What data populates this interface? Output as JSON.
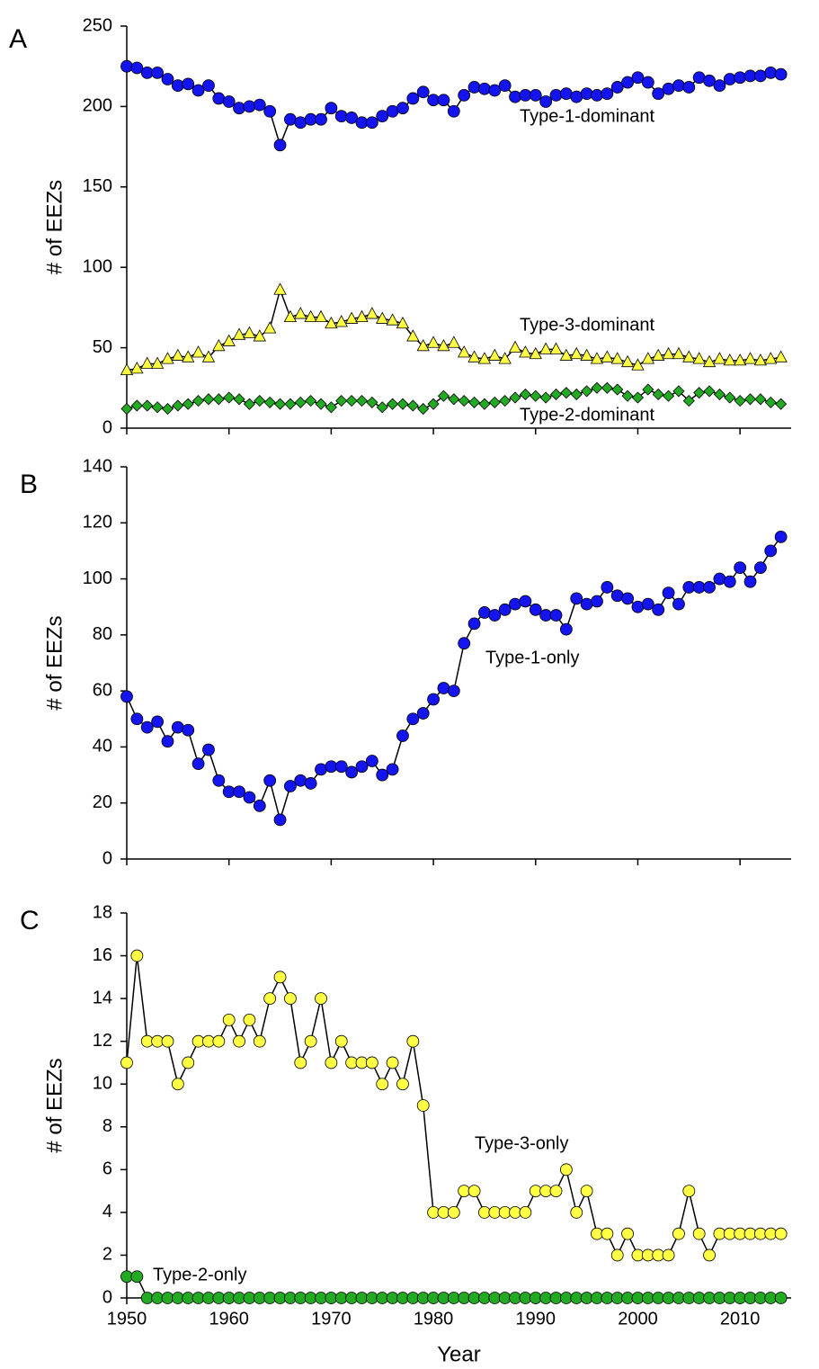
{
  "chart_data": [
    {
      "type": "line",
      "panel_label": "A",
      "ylabel": "# of EEZs",
      "xlim": [
        1950,
        2015
      ],
      "ylim": [
        0,
        250
      ],
      "yticks": [
        0,
        50,
        100,
        150,
        200,
        250
      ],
      "xticks": [
        1950,
        1960,
        1970,
        1980,
        1990,
        2000,
        2010
      ],
      "show_xtick_labels": false,
      "x": [
        1950,
        1951,
        1952,
        1953,
        1954,
        1955,
        1956,
        1957,
        1958,
        1959,
        1960,
        1961,
        1962,
        1963,
        1964,
        1965,
        1966,
        1967,
        1968,
        1969,
        1970,
        1971,
        1972,
        1973,
        1974,
        1975,
        1976,
        1977,
        1978,
        1979,
        1980,
        1981,
        1982,
        1983,
        1984,
        1985,
        1986,
        1987,
        1988,
        1989,
        1990,
        1991,
        1992,
        1993,
        1994,
        1995,
        1996,
        1997,
        1998,
        1999,
        2000,
        2001,
        2002,
        2003,
        2004,
        2005,
        2006,
        2007,
        2008,
        2009,
        2010,
        2011,
        2012,
        2013,
        2014
      ],
      "series": [
        {
          "name": "Type-1-dominant",
          "color": "#1414f0",
          "marker": "circle",
          "values": [
            225,
            224,
            221,
            221,
            217,
            213,
            214,
            210,
            213,
            205,
            203,
            199,
            200,
            201,
            197,
            176,
            192,
            190,
            192,
            192,
            199,
            194,
            193,
            190,
            190,
            194,
            197,
            199,
            205,
            209,
            204,
            204,
            197,
            207,
            212,
            211,
            210,
            213,
            206,
            207,
            207,
            203,
            207,
            208,
            206,
            208,
            207,
            208,
            212,
            215,
            218,
            215,
            208,
            211,
            213,
            212,
            218,
            216,
            213,
            217,
            218,
            219,
            219,
            221,
            220
          ]
        },
        {
          "name": "Type-3-dominant",
          "color": "#ffff44",
          "marker": "triangle",
          "values": [
            36,
            37,
            40,
            40,
            43,
            45,
            44,
            47,
            44,
            51,
            54,
            58,
            59,
            57,
            62,
            86,
            69,
            71,
            69,
            69,
            65,
            66,
            68,
            69,
            71,
            68,
            67,
            65,
            57,
            51,
            53,
            51,
            53,
            47,
            44,
            43,
            45,
            43,
            50,
            47,
            46,
            49,
            49,
            45,
            46,
            45,
            43,
            44,
            43,
            41,
            39,
            43,
            45,
            46,
            46,
            44,
            43,
            41,
            43,
            42,
            42,
            43,
            42,
            43,
            44
          ]
        },
        {
          "name": "Type-2-dominant",
          "color": "#22aa22",
          "marker": "diamond",
          "values": [
            12,
            14,
            14,
            13,
            12,
            14,
            15,
            17,
            18,
            18,
            19,
            18,
            15,
            17,
            16,
            15,
            15,
            16,
            17,
            15,
            13,
            17,
            17,
            17,
            16,
            13,
            15,
            15,
            14,
            12,
            15,
            20,
            18,
            17,
            16,
            15,
            16,
            17,
            19,
            21,
            20,
            19,
            21,
            22,
            21,
            23,
            25,
            25,
            24,
            20,
            19,
            24,
            21,
            20,
            23,
            17,
            22,
            23,
            21,
            19,
            17,
            18,
            18,
            16,
            15
          ]
        }
      ]
    },
    {
      "type": "line",
      "panel_label": "B",
      "ylabel": "# of EEZs",
      "xlim": [
        1950,
        2015
      ],
      "ylim": [
        0,
        140
      ],
      "yticks": [
        0,
        20,
        40,
        60,
        80,
        100,
        120,
        140
      ],
      "xticks": [
        1950,
        1960,
        1970,
        1980,
        1990,
        2000,
        2010
      ],
      "show_xtick_labels": false,
      "x": [
        1950,
        1951,
        1952,
        1953,
        1954,
        1955,
        1956,
        1957,
        1958,
        1959,
        1960,
        1961,
        1962,
        1963,
        1964,
        1965,
        1966,
        1967,
        1968,
        1969,
        1970,
        1971,
        1972,
        1973,
        1974,
        1975,
        1976,
        1977,
        1978,
        1979,
        1980,
        1981,
        1982,
        1983,
        1984,
        1985,
        1986,
        1987,
        1988,
        1989,
        1990,
        1991,
        1992,
        1993,
        1994,
        1995,
        1996,
        1997,
        1998,
        1999,
        2000,
        2001,
        2002,
        2003,
        2004,
        2005,
        2006,
        2007,
        2008,
        2009,
        2010,
        2011,
        2012,
        2013,
        2014
      ],
      "series": [
        {
          "name": "Type-1-only",
          "color": "#1414f0",
          "marker": "circle",
          "values": [
            58,
            50,
            47,
            49,
            42,
            47,
            46,
            34,
            39,
            28,
            24,
            24,
            22,
            19,
            28,
            14,
            26,
            28,
            27,
            32,
            33,
            33,
            31,
            33,
            35,
            30,
            32,
            44,
            50,
            52,
            57,
            61,
            60,
            77,
            84,
            88,
            87,
            89,
            91,
            92,
            89,
            87,
            87,
            82,
            93,
            91,
            92,
            97,
            94,
            93,
            90,
            91,
            89,
            95,
            91,
            97,
            97,
            97,
            100,
            99,
            104,
            99,
            104,
            110,
            115
          ]
        }
      ]
    },
    {
      "type": "line",
      "panel_label": "C",
      "ylabel": "# of EEZs",
      "xlabel": "Year",
      "xlim": [
        1950,
        2015
      ],
      "ylim": [
        0,
        18
      ],
      "yticks": [
        0,
        2,
        4,
        6,
        8,
        10,
        12,
        14,
        16,
        18
      ],
      "xticks": [
        1950,
        1960,
        1970,
        1980,
        1990,
        2000,
        2010
      ],
      "show_xtick_labels": true,
      "x": [
        1950,
        1951,
        1952,
        1953,
        1954,
        1955,
        1956,
        1957,
        1958,
        1959,
        1960,
        1961,
        1962,
        1963,
        1964,
        1965,
        1966,
        1967,
        1968,
        1969,
        1970,
        1971,
        1972,
        1973,
        1974,
        1975,
        1976,
        1977,
        1978,
        1979,
        1980,
        1981,
        1982,
        1983,
        1984,
        1985,
        1986,
        1987,
        1988,
        1989,
        1990,
        1991,
        1992,
        1993,
        1994,
        1995,
        1996,
        1997,
        1998,
        1999,
        2000,
        2001,
        2002,
        2003,
        2004,
        2005,
        2006,
        2007,
        2008,
        2009,
        2010,
        2011,
        2012,
        2013,
        2014
      ],
      "series": [
        {
          "name": "Type-3-only",
          "color": "#ffff44",
          "marker": "circle",
          "values": [
            11,
            16,
            12,
            12,
            12,
            10,
            11,
            12,
            12,
            12,
            13,
            12,
            13,
            12,
            14,
            15,
            14,
            11,
            12,
            14,
            11,
            12,
            11,
            11,
            11,
            10,
            11,
            10,
            12,
            9,
            4,
            4,
            4,
            5,
            5,
            4,
            4,
            4,
            4,
            4,
            5,
            5,
            5,
            6,
            4,
            5,
            3,
            3,
            2,
            3,
            2,
            2,
            2,
            2,
            3,
            5,
            3,
            2,
            3,
            3,
            3,
            3,
            3,
            3,
            3
          ]
        },
        {
          "name": "Type-2-only",
          "color": "#22aa22",
          "marker": "circle",
          "values": [
            1,
            1,
            0,
            0,
            0,
            0,
            0,
            0,
            0,
            0,
            0,
            0,
            0,
            0,
            0,
            0,
            0,
            0,
            0,
            0,
            0,
            0,
            0,
            0,
            0,
            0,
            0,
            0,
            0,
            0,
            0,
            0,
            0,
            0,
            0,
            0,
            0,
            0,
            0,
            0,
            0,
            0,
            0,
            0,
            0,
            0,
            0,
            0,
            0,
            0,
            0,
            0,
            0,
            0,
            0,
            0,
            0,
            0,
            0,
            0,
            0,
            0,
            0,
            0,
            0
          ]
        }
      ]
    }
  ]
}
